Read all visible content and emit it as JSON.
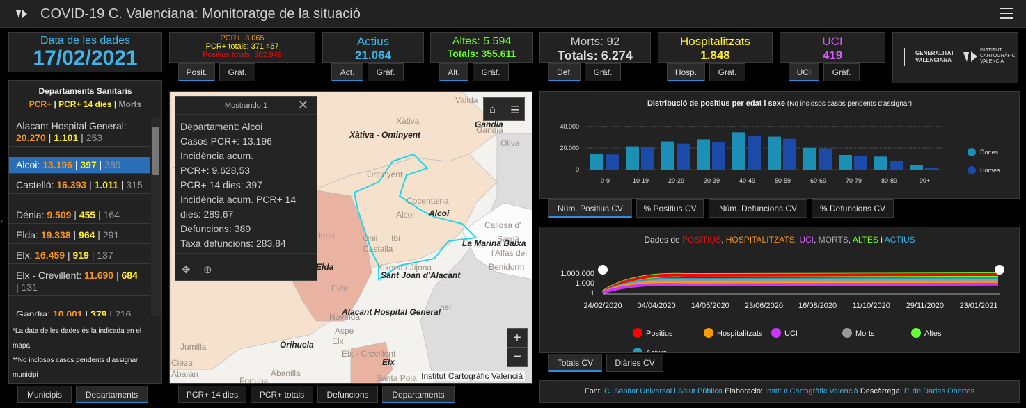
{
  "header": {
    "title": "COVID-19 C. Valenciana: Monitoratge de la situació"
  },
  "date_card": {
    "label": "Data de les dades",
    "value": "17/02/2021"
  },
  "pcr_card": {
    "line1": "PCR+: 3.065",
    "line2": "PCR+ totals: 371.467",
    "line3": "Positius totals: 382.949",
    "tab1": "Posit.",
    "tab2": "Gràf."
  },
  "actius_card": {
    "label": "Actius",
    "value": "21.064",
    "tab1": "Act.",
    "tab2": "Gràf."
  },
  "altes_card": {
    "label": "Altes: 5.594",
    "value": "Totals: 355.611",
    "tab1": "Alt.",
    "tab2": "Gràf."
  },
  "morts_card": {
    "label": "Morts: 92",
    "value": "Totals: 6.274",
    "tab1": "Def.",
    "tab2": "Gràf."
  },
  "hosp_card": {
    "label": "Hospitalitzats",
    "value": "1.848",
    "tab1": "Hosp.",
    "tab2": "Gràf."
  },
  "uci_card": {
    "label": "UCI",
    "value": "419",
    "tab1": "UCI",
    "tab2": "Gràf."
  },
  "logos": {
    "gv": "GENERALITAT VALENCIANA",
    "icv": "INSTITUT CARTOGRÀFIC VALENCIÀ"
  },
  "depts": {
    "title": "Departaments Sanitaris",
    "legend_pcr": "PCR+",
    "legend_sep": " | ",
    "legend_14": "PCR+ 14 dies",
    "legend_sep2": " | ",
    "legend_morts": "Morts",
    "items": [
      {
        "name": "Alacant Hospital General: ",
        "pcr": "20.270",
        "d14": "1.101",
        "morts": "253"
      },
      {
        "name": "Alcoi: ",
        "pcr": "13.196",
        "d14": "397",
        "morts": "389"
      },
      {
        "name": "Castelló: ",
        "pcr": "16.393",
        "d14": "1.011",
        "morts": "315"
      },
      {
        "name": "Dénia: ",
        "pcr": "9.509",
        "d14": "455",
        "morts": "164"
      },
      {
        "name": "Elda: ",
        "pcr": "19.338",
        "d14": "964",
        "morts": "291"
      },
      {
        "name": "Elx: ",
        "pcr": "16.459",
        "d14": "919",
        "morts": "137"
      },
      {
        "name": "Elx - Crevillent: ",
        "pcr": "11.690",
        "d14": "684",
        "morts": "131"
      },
      {
        "name": "Gandia: ",
        "pcr": "10.001",
        "d14": "379",
        "morts": "216"
      }
    ],
    "note1": "*La data de les dades és la indicada en el mapa",
    "note2": "**No inclosos casos pendents d'assignar municipi",
    "tab_mun": "Municipis",
    "tab_dep": "Departaments"
  },
  "map": {
    "labels": [
      "Vallda",
      "Xàtiva - Ontinyent",
      "Xàtiva",
      "Gandia",
      "Gandia",
      "Oliva",
      "Ontinyent",
      "Cocentaina",
      "Alcoi",
      "Alcoi",
      "Callosa d'",
      "Sarrià",
      "La Marina Baixa",
      "l'Alfàs del",
      "Benidorm",
      "Onil",
      "Ibi",
      "Castalla",
      "Xixona / Jijona",
      "Sant Joan d'Alacant",
      "Alacant Hospital General",
      "Elda",
      "Elda",
      "Jumilla",
      "Novelda",
      "Aspe",
      "Orihuela",
      "Elx",
      "Elx - Crevillent",
      "Cieza",
      "Abaràn",
      "Abanilla",
      "Fortuna",
      "Santa Pola",
      "nel",
      "lena",
      "Elx"
    ],
    "attribution": "Institut Cartogràfic Valencià",
    "popup": {
      "title": "Mostrando 1",
      "lines": [
        "Departament: Alcoi",
        "Casos PCR+: 13.196",
        "Incidència acum.",
        "PCR+: 9.628,53",
        "PCR+ 14 dies: 397",
        "Incidència acum. PCR+ 14",
        "dies: 289,67",
        "Defuncions: 389",
        "Taxa defuncions: 283,84"
      ]
    },
    "tabs": [
      "PCR+ 14 dies",
      "PCR+ totals",
      "Defuncions",
      "Departaments"
    ]
  },
  "bar_panel": {
    "title": "Distribució de positius per edat i sexe",
    "subtitle": " (No inclosos casos pendents d'assignar)",
    "legend_dones": "Dones",
    "legend_homes": "Homes",
    "tabs": [
      "Núm. Positius CV",
      "% Positius CV",
      "Núm. Defuncions CV",
      "% Defuncions CV"
    ],
    "yticks": [
      "40.000",
      "20.000",
      "0"
    ]
  },
  "chart_data": [
    {
      "type": "bar",
      "title": "Distribució de positius per edat i sexe",
      "categories": [
        "0-9",
        "10-19",
        "20-29",
        "30-39",
        "40-49",
        "50-59",
        "60-69",
        "70-79",
        "80-89",
        "90+"
      ],
      "series": [
        {
          "name": "Dones",
          "values": [
            14500,
            21500,
            26000,
            28000,
            34500,
            30500,
            20000,
            13500,
            12000,
            4500
          ]
        },
        {
          "name": "Homes",
          "values": [
            14000,
            21000,
            24000,
            25500,
            31500,
            28500,
            19500,
            12500,
            8000,
            1500
          ]
        }
      ],
      "ylim": [
        0,
        45000
      ]
    },
    {
      "type": "line",
      "title": "Dades de POSITIUS, HOSPITALITZATS, UCI, MORTS, ALTES i ACTIUS",
      "ylog": true,
      "xticks": [
        "24/02/2020",
        "04/04/2020",
        "14/05/2020",
        "23/06/2020",
        "16/08/2020",
        "11/10/2020",
        "29/11/2020",
        "23/01/2021"
      ],
      "yticks": [
        "1.000.000",
        "1.000",
        "1"
      ],
      "series": [
        {
          "name": "Positius",
          "color": "#ff0000",
          "last": 382949
        },
        {
          "name": "Hospitalitzats",
          "color": "#ff9900",
          "last": 1848
        },
        {
          "name": "UCI",
          "color": "#cc33ff",
          "last": 419
        },
        {
          "name": "Morts",
          "color": "#999999",
          "last": 6274
        },
        {
          "name": "Altes",
          "color": "#66ff33",
          "last": 355611
        },
        {
          "name": "Actius",
          "color": "#1f9fbf",
          "last": 21064
        }
      ]
    }
  ],
  "line_panel": {
    "t_pre": "Dades de ",
    "t_pos": "POSITIUS",
    "c1": ", ",
    "t_hosp": "HOSPITALITZATS",
    "c2": ", ",
    "t_uci": "UCI",
    "c3": ", ",
    "t_morts": "MORTS",
    "c4": ", ",
    "t_altes": "ALTES",
    "c5": " i ",
    "t_act": "ACTIUS",
    "tabs": [
      "Totals CV",
      "Diàries CV"
    ]
  },
  "colors": {
    "accent": "#2a8fd8",
    "date": "#3fb4e8",
    "orange": "#f7941d",
    "yellow": "#ffed29",
    "green": "#6cfc2f",
    "purple": "#d45cf5",
    "red": "#e01010"
  },
  "footer": {
    "font_l": "Font: ",
    "font_v": "C. Sanitat Universal i Salut Pública",
    "elab_l": " Elaboració: ",
    "elab_v": "Institut Cartogràfic Valencià",
    "desc_l": " Descàrrega: ",
    "desc_v": "P. de Dades Obertes"
  }
}
